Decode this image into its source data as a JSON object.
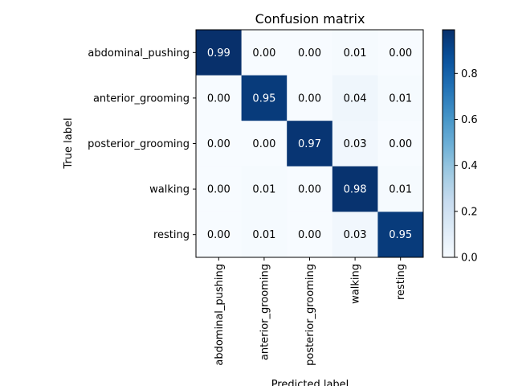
{
  "chart_data": {
    "type": "heatmap",
    "title": "Confusion matrix",
    "xlabel": "Predicted label",
    "ylabel": "True label",
    "rows": [
      "abdominal_pushing",
      "anterior_grooming",
      "posterior_grooming",
      "walking",
      "resting"
    ],
    "cols": [
      "abdominal_pushing",
      "anterior_grooming",
      "posterior_grooming",
      "walking",
      "resting"
    ],
    "values": [
      [
        0.99,
        0.0,
        0.0,
        0.01,
        0.0
      ],
      [
        0.0,
        0.95,
        0.0,
        0.04,
        0.01
      ],
      [
        0.0,
        0.0,
        0.97,
        0.03,
        0.0
      ],
      [
        0.0,
        0.01,
        0.0,
        0.98,
        0.01
      ],
      [
        0.0,
        0.01,
        0.0,
        0.03,
        0.95
      ]
    ],
    "value_range": [
      0,
      0.99
    ],
    "colormap": "Blues",
    "colorbar": {
      "ticks": [
        0.0,
        0.2,
        0.4,
        0.6,
        0.8
      ],
      "tick_labels": [
        "0.0",
        "0.2",
        "0.4",
        "0.6",
        "0.8"
      ]
    },
    "label_threshold": 0.5,
    "colors": {
      "light_text": "#ffffff",
      "dark_text": "#000000",
      "axis": "#000000"
    }
  }
}
